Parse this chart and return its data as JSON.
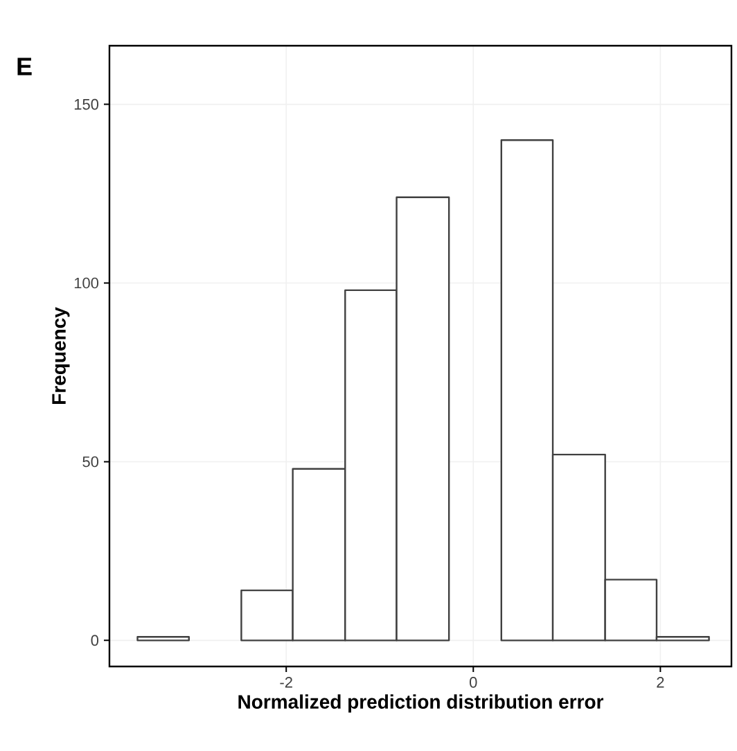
{
  "chart_data": {
    "type": "histogram",
    "xlabel": "Normalized prediction distribution error",
    "ylabel": "Frequency",
    "annotations": [
      "E"
    ],
    "bins": [
      -3.59,
      -3.04,
      -2.48,
      -1.93,
      -1.37,
      -0.82,
      -0.26,
      0.3,
      0.85,
      1.41,
      1.96,
      2.52
    ],
    "values": [
      1,
      0,
      14,
      48,
      98,
      124,
      null,
      140,
      52,
      17,
      1
    ],
    "color": "#404040",
    "xlim": [
      -3.89,
      2.76
    ],
    "ylim": [
      -7.3,
      166.4
    ],
    "xticks": [
      -2,
      0,
      2
    ],
    "yticks": [
      0,
      50,
      100,
      150
    ],
    "grid": true
  }
}
